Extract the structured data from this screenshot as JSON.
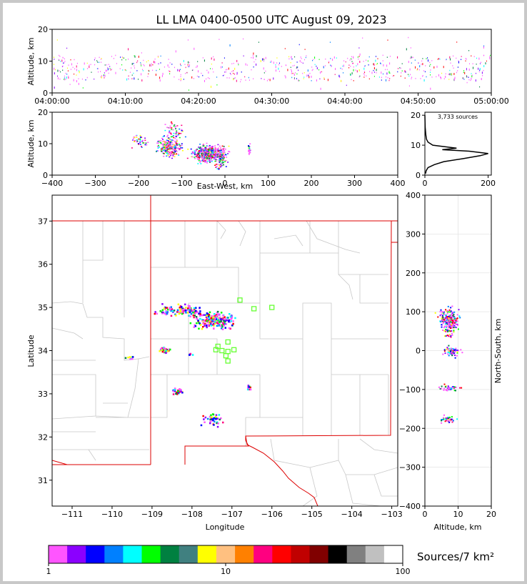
{
  "title": "LL LMA 0400-0500 UTC August 09, 2023",
  "chart_data": [
    {
      "type": "scatter",
      "panel": "altitude-time",
      "ylabel": "Altitude, km",
      "ylim": [
        0,
        20
      ],
      "yticks": [
        "0",
        "10",
        "20"
      ],
      "xticks": [
        "04:00:00",
        "04:10:00",
        "04:20:00",
        "04:30:00",
        "04:40:00",
        "04:50:00",
        "05:00:00"
      ],
      "y_core_band_km": [
        4,
        12
      ]
    },
    {
      "type": "heatmap",
      "panel": "altitude-east-west",
      "xlabel": "East-West, km",
      "ylabel": "Altitude, km",
      "xlim": [
        -400,
        400
      ],
      "ylim": [
        0,
        20
      ],
      "xticks": [
        "−400",
        "−300",
        "−200",
        "−100",
        "0",
        "100",
        "200",
        "300",
        "400"
      ],
      "yticks": [
        "0",
        "10",
        "20"
      ]
    },
    {
      "type": "line",
      "panel": "altitude-histogram",
      "annotation": "3,733 sources",
      "xlim": [
        0,
        210
      ],
      "ylim": [
        0,
        21
      ],
      "xticks": [
        "0",
        "200"
      ],
      "yticks": [
        "0",
        "10",
        "20"
      ],
      "profile": [
        {
          "alt": 0.5,
          "count": 2
        },
        {
          "alt": 1.5,
          "count": 4
        },
        {
          "alt": 2.5,
          "count": 10
        },
        {
          "alt": 3.5,
          "count": 30
        },
        {
          "alt": 4.5,
          "count": 60
        },
        {
          "alt": 5.5,
          "count": 120
        },
        {
          "alt": 6.5,
          "count": 175
        },
        {
          "alt": 7.2,
          "count": 200
        },
        {
          "alt": 8.0,
          "count": 140
        },
        {
          "alt": 8.5,
          "count": 55
        },
        {
          "alt": 9.0,
          "count": 100
        },
        {
          "alt": 10.0,
          "count": 25
        },
        {
          "alt": 11.0,
          "count": 10
        },
        {
          "alt": 12.0,
          "count": 5
        },
        {
          "alt": 13.5,
          "count": 3
        },
        {
          "alt": 16.0,
          "count": 1
        },
        {
          "alt": 20.0,
          "count": 0
        }
      ]
    },
    {
      "type": "heatmap",
      "panel": "plan-view-map",
      "xlabel": "Longitude",
      "ylabel": "Latitude",
      "xlim": [
        -111.5,
        -102.85
      ],
      "ylim": [
        30.4,
        37.6
      ],
      "xticks": [
        "−111",
        "−110",
        "−109",
        "−108",
        "−107",
        "−106",
        "−105",
        "−104",
        "−103"
      ],
      "yticks": [
        "31",
        "32",
        "33",
        "34",
        "35",
        "36",
        "37"
      ],
      "stations": [
        {
          "lon": -106.8,
          "lat": 35.17
        },
        {
          "lon": -106.45,
          "lat": 34.97
        },
        {
          "lon": -106.0,
          "lat": 35.0
        },
        {
          "lon": -107.1,
          "lat": 34.2
        },
        {
          "lon": -107.35,
          "lat": 34.1
        },
        {
          "lon": -107.4,
          "lat": 34.02
        },
        {
          "lon": -107.25,
          "lat": 34.0
        },
        {
          "lon": -107.1,
          "lat": 33.98
        },
        {
          "lon": -106.95,
          "lat": 34.02
        },
        {
          "lon": -107.15,
          "lat": 33.88
        },
        {
          "lon": -107.1,
          "lat": 33.76
        }
      ],
      "clusters": [
        {
          "lon": -108.3,
          "lat": 34.95,
          "spread_lon": 0.5,
          "spread_lat": 0.1,
          "n": 110
        },
        {
          "lon": -107.5,
          "lat": 34.72,
          "spread_lon": 0.4,
          "spread_lat": 0.14,
          "n": 220
        },
        {
          "lon": -108.7,
          "lat": 34.03,
          "spread_lon": 0.12,
          "spread_lat": 0.06,
          "n": 35
        },
        {
          "lon": -108.35,
          "lat": 33.08,
          "spread_lon": 0.1,
          "spread_lat": 0.06,
          "n": 30
        },
        {
          "lon": -107.5,
          "lat": 32.42,
          "spread_lon": 0.25,
          "spread_lat": 0.12,
          "n": 40
        },
        {
          "lon": -106.6,
          "lat": 33.15,
          "spread_lon": 0.05,
          "spread_lat": 0.06,
          "n": 10
        },
        {
          "lon": -109.6,
          "lat": 33.87,
          "spread_lon": 0.1,
          "spread_lat": 0.05,
          "n": 8
        },
        {
          "lon": -108.05,
          "lat": 33.93,
          "spread_lon": 0.04,
          "spread_lat": 0.03,
          "n": 6
        }
      ]
    },
    {
      "type": "heatmap",
      "panel": "north-south-altitude",
      "xlabel": "Altitude, km",
      "ylabel": "North-South, km",
      "xlim": [
        0,
        20
      ],
      "ylim": [
        -400,
        400
      ],
      "xticks": [
        "0",
        "10",
        "20"
      ],
      "yticks": [
        "−400",
        "−300",
        "−200",
        "−100",
        "0",
        "100",
        "200",
        "300",
        "400"
      ],
      "clusters": [
        {
          "ns": 80,
          "alt": 7,
          "spread_ns": 25,
          "spread_alt": 2.5,
          "n": 220
        },
        {
          "ns": 0,
          "alt": 8,
          "spread_ns": 10,
          "spread_alt": 2,
          "n": 60
        },
        {
          "ns": -95,
          "alt": 8,
          "spread_ns": 6,
          "spread_alt": 3,
          "n": 40
        },
        {
          "ns": -175,
          "alt": 7,
          "spread_ns": 6,
          "spread_alt": 2,
          "n": 40
        },
        {
          "ns": 40,
          "alt": 7,
          "spread_ns": 4,
          "spread_alt": 1.5,
          "n": 10
        }
      ]
    }
  ],
  "colorbar": {
    "label": "Sources/7 km²",
    "tick_labels": [
      "1",
      "10",
      "100"
    ],
    "colors": [
      "#ff55ff",
      "#8b00ff",
      "#0000ff",
      "#0080ff",
      "#00ffff",
      "#00ff00",
      "#008040",
      "#408080",
      "#ffff00",
      "#ffc080",
      "#ff8000",
      "#ff0080",
      "#ff0000",
      "#c00000",
      "#800000",
      "#000000",
      "#808080",
      "#c0c0c0",
      "#ffffff"
    ]
  }
}
